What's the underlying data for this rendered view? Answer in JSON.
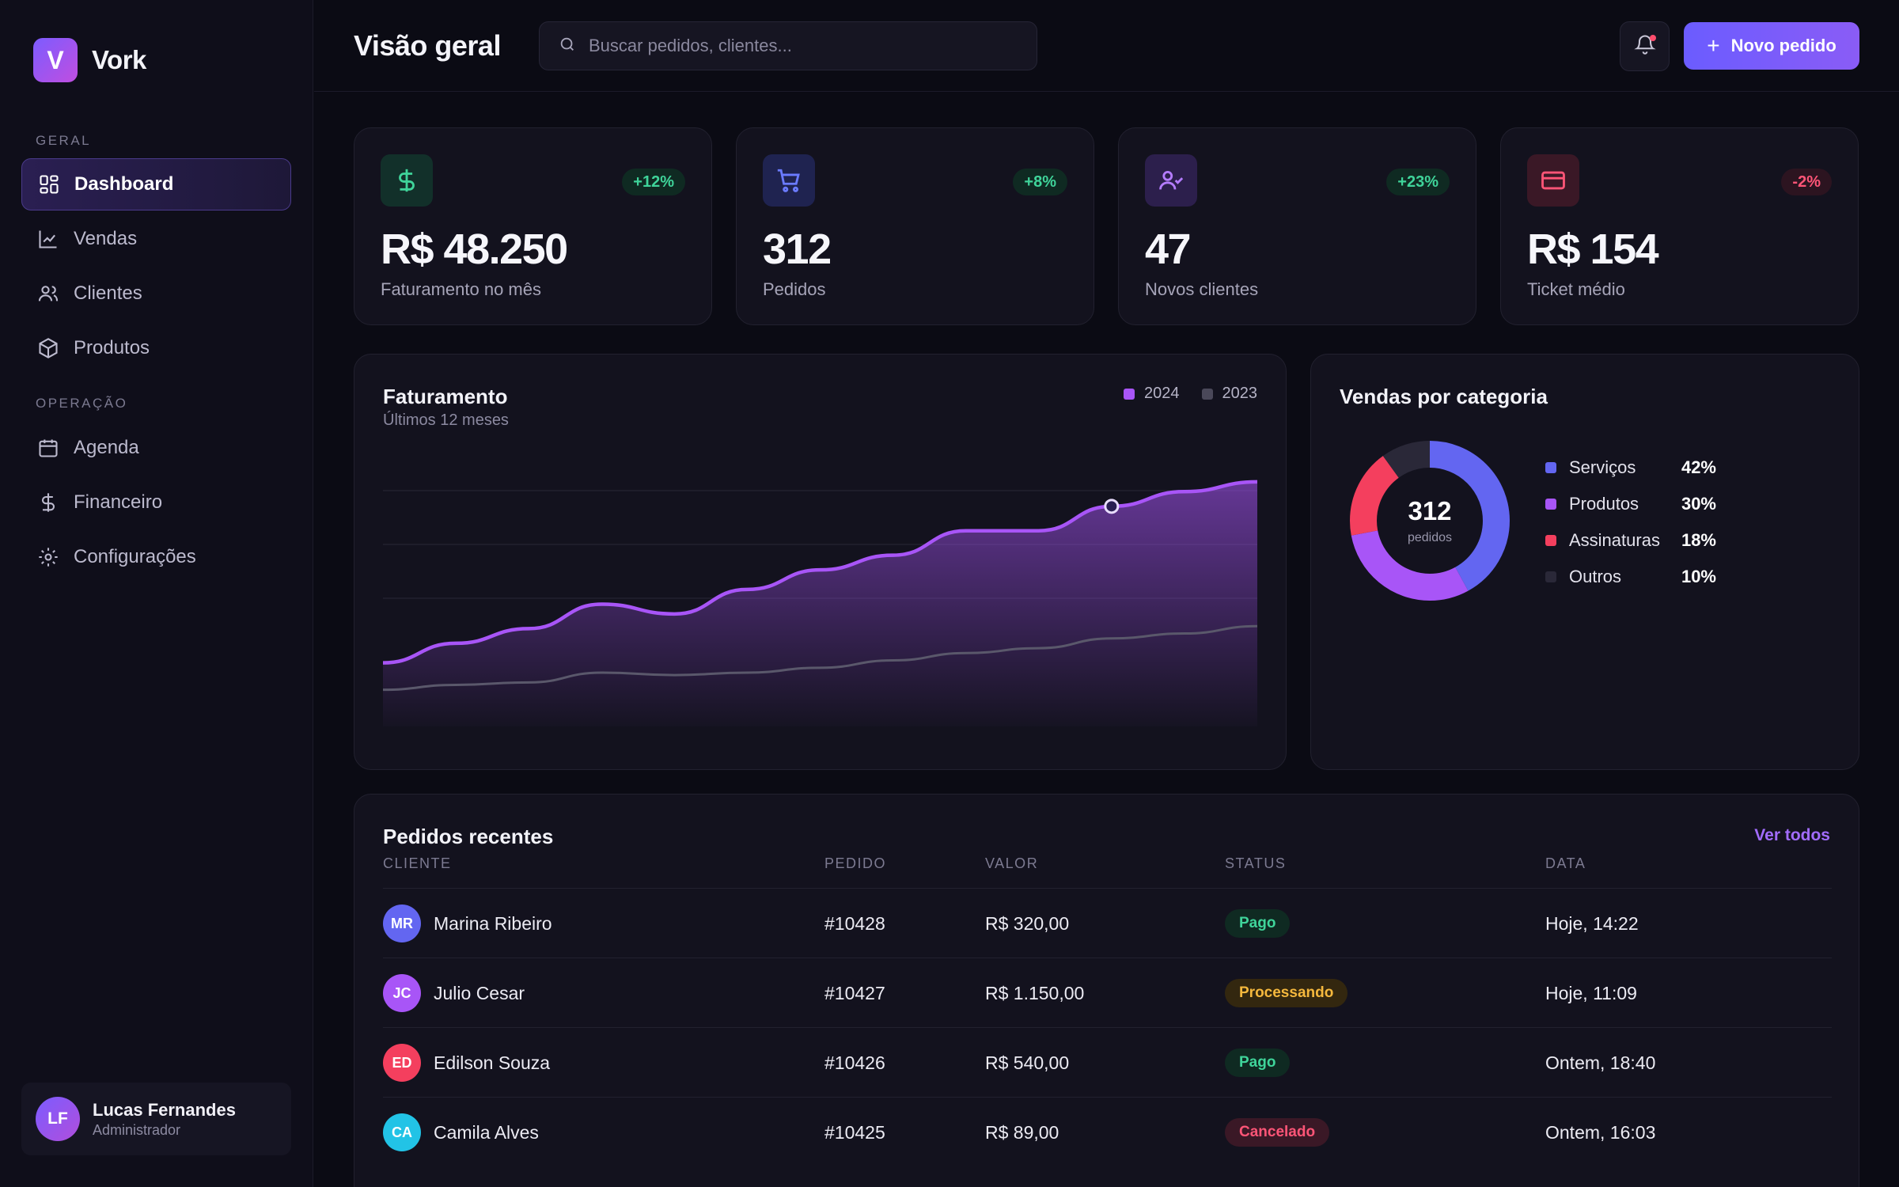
{
  "brand": {
    "initial": "V",
    "name": "Vork"
  },
  "sidebar": {
    "sections": [
      {
        "label": "GERAL"
      },
      {
        "label": "OPERAÇÃO"
      }
    ],
    "items": [
      {
        "label": "Dashboard",
        "icon": "dashboard-icon",
        "active": true
      },
      {
        "label": "Vendas",
        "icon": "chart-line-icon"
      },
      {
        "label": "Clientes",
        "icon": "users-icon"
      },
      {
        "label": "Produtos",
        "icon": "box-icon"
      },
      {
        "label": "Agenda",
        "icon": "calendar-icon"
      },
      {
        "label": "Financeiro",
        "icon": "dollar-icon"
      },
      {
        "label": "Configurações",
        "icon": "settings-icon"
      }
    ],
    "user": {
      "initials": "LF",
      "name": "Lucas Fernandes",
      "role": "Administrador"
    }
  },
  "header": {
    "title": "Visão geral",
    "search_placeholder": "Buscar pedidos, clientes...",
    "new_button": "Novo pedido"
  },
  "kpis": [
    {
      "icon": "dollar-icon",
      "badge": "+12%",
      "trend": "up",
      "value": "R$ 48.250",
      "label": "Faturamento no mês",
      "accent": "#3fd49a",
      "icon_bg": "#12302a"
    },
    {
      "icon": "cart-icon",
      "badge": "+8%",
      "trend": "up",
      "value": "312",
      "label": "Pedidos",
      "accent": "#6b7bff",
      "icon_bg": "#1f2350"
    },
    {
      "icon": "user-check-icon",
      "badge": "+23%",
      "trend": "up",
      "value": "47",
      "label": "Novos clientes",
      "accent": "#b47cff",
      "icon_bg": "#2c1f4c"
    },
    {
      "icon": "card-icon",
      "badge": "-2%",
      "trend": "down",
      "value": "R$ 154",
      "label": "Ticket médio",
      "accent": "#ff5577",
      "icon_bg": "#3a1826"
    }
  ],
  "revenue": {
    "title": "Faturamento",
    "subtitle": "Últimos 12 meses",
    "legend": [
      {
        "name": "2024",
        "color": "#a855f7"
      },
      {
        "name": "2023",
        "color": "#4a4859"
      }
    ]
  },
  "chart_data": {
    "type": "area",
    "title": "Faturamento",
    "subtitle": "Últimos 12 meses",
    "x": [
      1,
      2,
      3,
      4,
      5,
      6,
      7,
      8,
      9,
      10,
      11,
      12,
      13
    ],
    "series": [
      {
        "name": "2024",
        "color": "#a855f7",
        "values": [
          0.26,
          0.34,
          0.4,
          0.5,
          0.46,
          0.56,
          0.64,
          0.7,
          0.8,
          0.8,
          0.9,
          0.96,
          1.0
        ]
      },
      {
        "name": "2023",
        "color": "#4a4859",
        "values": [
          0.15,
          0.17,
          0.18,
          0.22,
          0.21,
          0.22,
          0.24,
          0.27,
          0.3,
          0.32,
          0.36,
          0.38,
          0.41
        ]
      }
    ],
    "highlight_index": 10,
    "ylim": [
      0,
      1.1
    ],
    "grid": true
  },
  "categories": {
    "title": "Vendas por categoria",
    "total": "312",
    "total_label": "pedidos",
    "items": [
      {
        "name": "Serviços",
        "pct": "42%",
        "value": 42,
        "color": "#6366f1"
      },
      {
        "name": "Produtos",
        "pct": "30%",
        "value": 30,
        "color": "#a855f7"
      },
      {
        "name": "Assinaturas",
        "pct": "18%",
        "value": 18,
        "color": "#f43f5e"
      },
      {
        "name": "Outros",
        "pct": "10%",
        "value": 10,
        "color": "#2a2838"
      }
    ]
  },
  "orders": {
    "title": "Pedidos recentes",
    "view_all": "Ver todos",
    "columns": [
      "CLIENTE",
      "PEDIDO",
      "VALOR",
      "STATUS",
      "DATA"
    ],
    "rows": [
      {
        "initials": "MR",
        "client": "Marina Ribeiro",
        "avatar": "#6366f1",
        "order": "#10428",
        "value": "R$ 320,00",
        "status": "Pago",
        "status_color": "#3fd49a",
        "status_bg": "#0f2a22",
        "date": "Hoje, 14:22"
      },
      {
        "initials": "JC",
        "client": "Julio Cesar",
        "avatar": "#a855f7",
        "order": "#10427",
        "value": "R$ 1.150,00",
        "status": "Processando",
        "status_color": "#f5b83d",
        "status_bg": "#33270f",
        "date": "Hoje, 11:09"
      },
      {
        "initials": "ED",
        "client": "Edilson Souza",
        "avatar": "#f43f5e",
        "order": "#10426",
        "value": "R$ 540,00",
        "status": "Pago",
        "status_color": "#3fd49a",
        "status_bg": "#0f2a22",
        "date": "Ontem, 18:40"
      },
      {
        "initials": "CA",
        "client": "Camila Alves",
        "avatar": "#22c3e6",
        "order": "#10425",
        "value": "R$ 89,00",
        "status": "Cancelado",
        "status_color": "#ff5577",
        "status_bg": "#3a1826",
        "date": "Ontem, 16:03"
      }
    ]
  }
}
